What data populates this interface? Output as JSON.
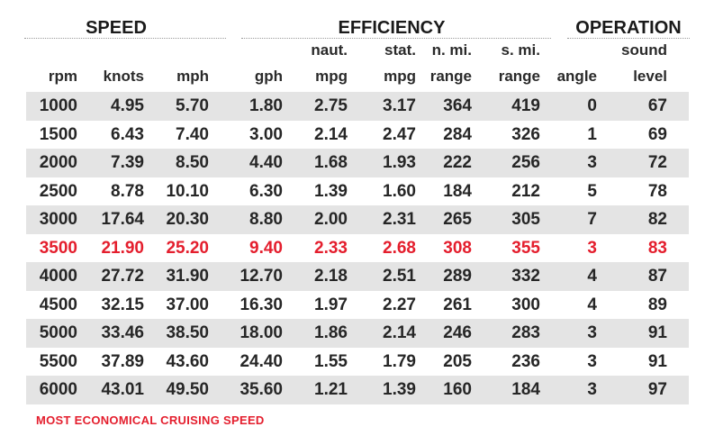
{
  "groups": {
    "speed": "SPEED",
    "efficiency": "EFFICIENCY",
    "operation": "OPERATION"
  },
  "columns": [
    {
      "top": "",
      "bottom": "rpm"
    },
    {
      "top": "",
      "bottom": "knots"
    },
    {
      "top": "",
      "bottom": "mph"
    },
    {
      "top": "",
      "bottom": "gph"
    },
    {
      "top": "naut.",
      "bottom": "mpg"
    },
    {
      "top": "stat.",
      "bottom": "mpg"
    },
    {
      "top": "n. mi.",
      "bottom": "range"
    },
    {
      "top": "s. mi.",
      "bottom": "range"
    },
    {
      "top": "",
      "bottom": "angle"
    },
    {
      "top": "sound",
      "bottom": "level"
    }
  ],
  "rows": [
    [
      "1000",
      "4.95",
      "5.70",
      "1.80",
      "2.75",
      "3.17",
      "364",
      "419",
      "0",
      "67"
    ],
    [
      "1500",
      "6.43",
      "7.40",
      "3.00",
      "2.14",
      "2.47",
      "284",
      "326",
      "1",
      "69"
    ],
    [
      "2000",
      "7.39",
      "8.50",
      "4.40",
      "1.68",
      "1.93",
      "222",
      "256",
      "3",
      "72"
    ],
    [
      "2500",
      "8.78",
      "10.10",
      "6.30",
      "1.39",
      "1.60",
      "184",
      "212",
      "5",
      "78"
    ],
    [
      "3000",
      "17.64",
      "20.30",
      "8.80",
      "2.00",
      "2.31",
      "265",
      "305",
      "7",
      "82"
    ],
    [
      "3500",
      "21.90",
      "25.20",
      "9.40",
      "2.33",
      "2.68",
      "308",
      "355",
      "3",
      "83"
    ],
    [
      "4000",
      "27.72",
      "31.90",
      "12.70",
      "2.18",
      "2.51",
      "289",
      "332",
      "4",
      "87"
    ],
    [
      "4500",
      "32.15",
      "37.00",
      "16.30",
      "1.97",
      "2.27",
      "261",
      "300",
      "4",
      "89"
    ],
    [
      "5000",
      "33.46",
      "38.50",
      "18.00",
      "1.86",
      "2.14",
      "246",
      "283",
      "3",
      "91"
    ],
    [
      "5500",
      "37.89",
      "43.60",
      "24.40",
      "1.55",
      "1.79",
      "205",
      "236",
      "3",
      "91"
    ],
    [
      "6000",
      "43.01",
      "49.50",
      "35.60",
      "1.21",
      "1.39",
      "160",
      "184",
      "3",
      "97"
    ]
  ],
  "highlight_row": 5,
  "highlight_color": "#e41e2d",
  "stripe_color": "#e4e4e4",
  "note": "MOST ECONOMICAL CRUISING SPEED"
}
